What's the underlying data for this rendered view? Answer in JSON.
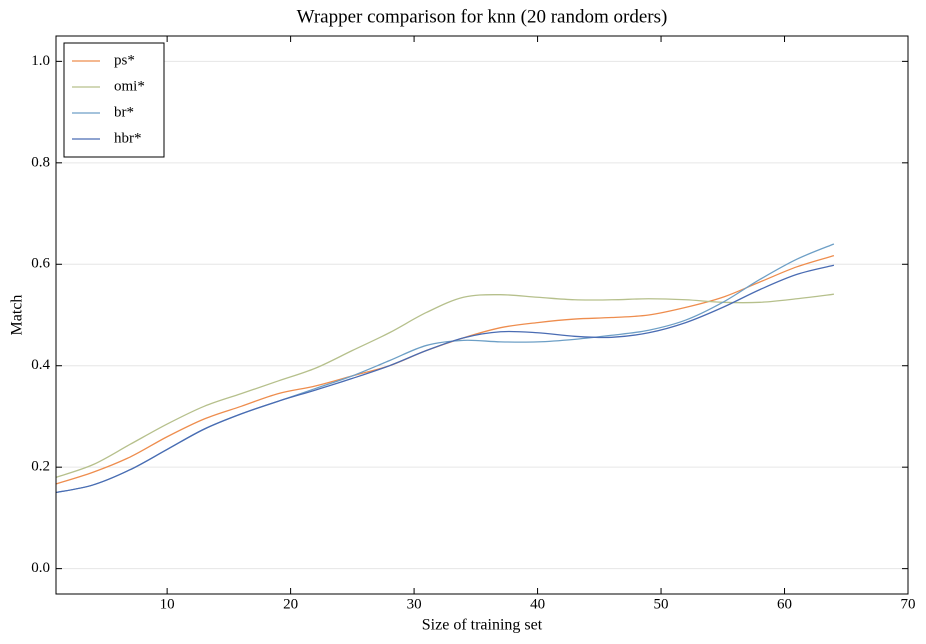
{
  "chart_data": {
    "type": "line",
    "title": "Wrapper comparison for knn (20 random orders)",
    "x_label": "Size of training set",
    "y_label": "Match",
    "x": [
      1,
      4,
      7,
      10,
      13,
      16,
      19,
      22,
      25,
      28,
      31,
      34,
      37,
      40,
      43,
      46,
      49,
      52,
      55,
      58,
      61,
      64
    ],
    "series": [
      {
        "name": "ps*",
        "color": "#ee8d4e",
        "values": [
          0.167,
          0.19,
          0.22,
          0.26,
          0.295,
          0.32,
          0.345,
          0.36,
          0.38,
          0.4,
          0.43,
          0.455,
          0.475,
          0.485,
          0.492,
          0.495,
          0.5,
          0.515,
          0.535,
          0.565,
          0.595,
          0.617
        ]
      },
      {
        "name": "omi*",
        "color": "#b6c08c",
        "values": [
          0.18,
          0.205,
          0.245,
          0.285,
          0.32,
          0.345,
          0.37,
          0.395,
          0.43,
          0.465,
          0.505,
          0.535,
          0.54,
          0.535,
          0.53,
          0.53,
          0.532,
          0.53,
          0.525,
          0.525,
          0.532,
          0.541
        ]
      },
      {
        "name": "br*",
        "color": "#6d9fc6",
        "values": [
          0.15,
          0.165,
          0.195,
          0.235,
          0.275,
          0.305,
          0.33,
          0.355,
          0.38,
          0.41,
          0.44,
          0.45,
          0.447,
          0.447,
          0.452,
          0.46,
          0.47,
          0.49,
          0.525,
          0.57,
          0.61,
          0.64
        ]
      },
      {
        "name": "hbr*",
        "color": "#4a6cb3",
        "values": [
          0.15,
          0.165,
          0.195,
          0.235,
          0.275,
          0.305,
          0.33,
          0.352,
          0.375,
          0.4,
          0.43,
          0.455,
          0.467,
          0.465,
          0.458,
          0.456,
          0.465,
          0.485,
          0.515,
          0.55,
          0.58,
          0.598
        ]
      }
    ],
    "xlim": [
      1,
      70
    ],
    "xticks": [
      10,
      20,
      30,
      40,
      50,
      60,
      70
    ],
    "ylim": [
      -0.05,
      1.05
    ],
    "yticks": [
      {
        "value": 0,
        "label": "0.0"
      },
      0.2,
      0.4,
      0.6,
      0.8,
      {
        "value": 1,
        "label": "1.0"
      }
    ],
    "grid": true,
    "legend_position": "upper left"
  }
}
